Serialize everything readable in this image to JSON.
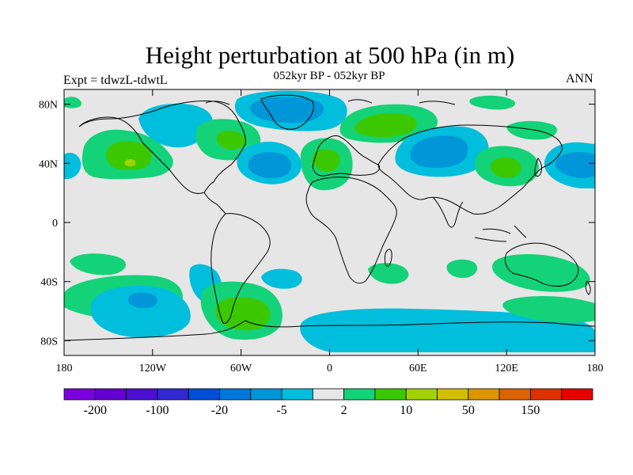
{
  "title": "Height perturbation at 500 hPa (in m)",
  "subtitle": "052kyr BP - 052kyr BP",
  "left_label": "Expt = tdwzL-tdwtL",
  "right_label": "ANN",
  "map": {
    "projection": "cylindrical-equidistant",
    "lon_range": [
      -180,
      180
    ],
    "lat_range": [
      -90,
      90
    ],
    "background_color": "#e6e6e6",
    "x_ticks": [
      {
        "value": -180,
        "label": "180"
      },
      {
        "value": -120,
        "label": "120W"
      },
      {
        "value": -60,
        "label": "60W"
      },
      {
        "value": 0,
        "label": "0"
      },
      {
        "value": 60,
        "label": "60E"
      },
      {
        "value": 120,
        "label": "120E"
      },
      {
        "value": 180,
        "label": "180"
      }
    ],
    "y_ticks": [
      {
        "value": 80,
        "label": "80N"
      },
      {
        "value": 40,
        "label": "40N"
      },
      {
        "value": 0,
        "label": "0"
      },
      {
        "value": -40,
        "label": "40S"
      },
      {
        "value": -80,
        "label": "80S"
      }
    ]
  },
  "colorbar": {
    "colors": [
      "#7a00dc",
      "#6400d2",
      "#4b0fd2",
      "#3228d2",
      "#0050d7",
      "#0078dc",
      "#0096d7",
      "#00bedc",
      "#e6e6e6",
      "#14d278",
      "#3cc800",
      "#a0d200",
      "#d2be00",
      "#dc9600",
      "#dc6400",
      "#dc3200",
      "#e60000"
    ],
    "labels": [
      {
        "index": 1,
        "text": "-200"
      },
      {
        "index": 3,
        "text": "-100"
      },
      {
        "index": 5,
        "text": "-20"
      },
      {
        "index": 7,
        "text": "-5"
      },
      {
        "index": 9,
        "text": "2"
      },
      {
        "index": 11,
        "text": "10"
      },
      {
        "index": 13,
        "text": "50"
      },
      {
        "index": 15,
        "text": "150"
      }
    ]
  }
}
